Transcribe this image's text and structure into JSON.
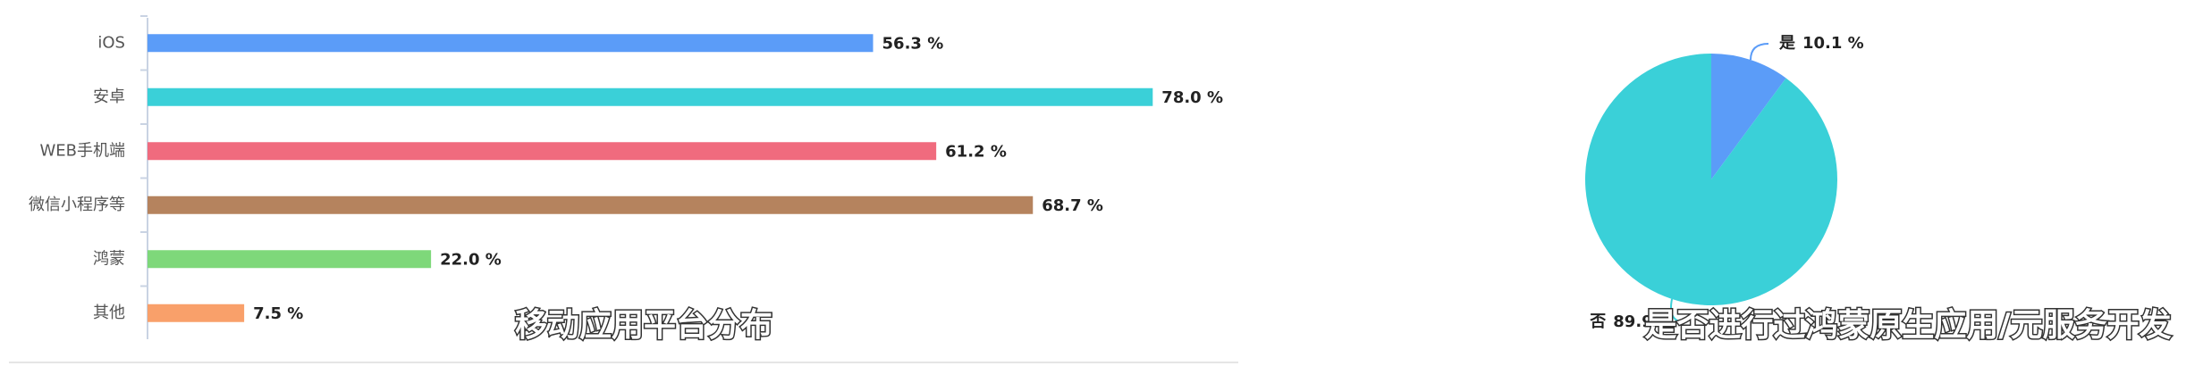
{
  "chart_data": [
    {
      "type": "bar",
      "title": "移动应用平台分布",
      "categories": [
        "iOS",
        "安卓",
        "WEB手机端",
        "微信小程序等",
        "鸿蒙",
        "其他"
      ],
      "values": [
        56.3,
        78.0,
        61.2,
        68.7,
        22.0,
        7.5
      ],
      "value_labels": [
        "56.3 %",
        "78.0 %",
        "61.2 %",
        "68.7 %",
        "22.0 %",
        "7.5 %"
      ],
      "colors": [
        "#5b9cf8",
        "#3ad0d8",
        "#f06b7e",
        "#b5835e",
        "#7ed87a",
        "#f9a06a"
      ],
      "xlim": [
        0,
        84.5
      ]
    },
    {
      "type": "pie",
      "title": "是否进行过鸿蒙原生应用/元服务开发",
      "categories": [
        "是",
        "否"
      ],
      "values": [
        10.1,
        89.9
      ],
      "value_labels": [
        "10.1 %",
        "89.9 %"
      ],
      "colors": [
        "#5b9cf8",
        "#3ad0d8"
      ]
    }
  ]
}
